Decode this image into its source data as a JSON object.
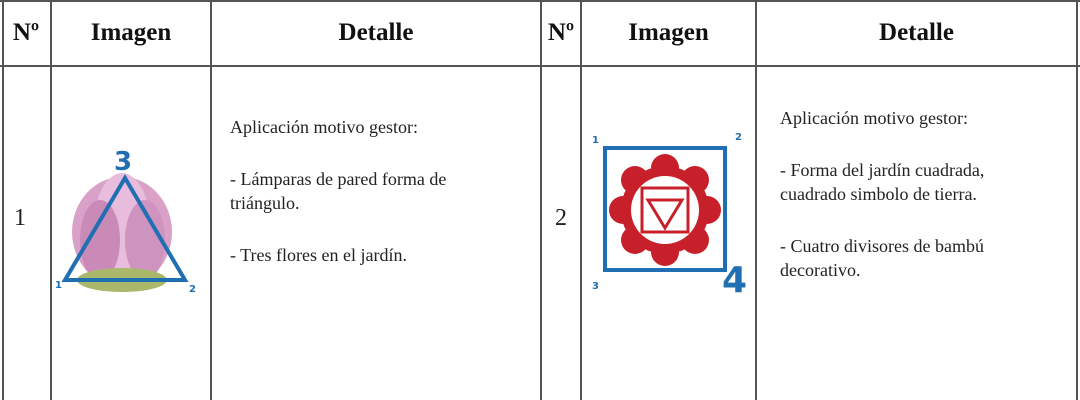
{
  "table": {
    "header": [
      "Nº",
      "Imagen",
      "Detalle",
      "Nº",
      "Imagen",
      "Detalle"
    ],
    "rows": [
      {
        "number": "1",
        "image_labels": [
          "3",
          "1",
          "2"
        ],
        "detail": [
          "Aplicación motivo gestor:",
          "- Lámparas de pared forma de triángulo.",
          "- Tres flores en el jardín."
        ]
      },
      {
        "number": "2",
        "image_labels": [
          "1",
          "2",
          "3",
          "4"
        ],
        "detail": [
          "Aplicación motivo gestor:",
          "- Forma del jardín cuadrada, cuadrado simbolo de tierra.",
          "- Cuatro divisores de bambú decorativo."
        ]
      }
    ]
  }
}
